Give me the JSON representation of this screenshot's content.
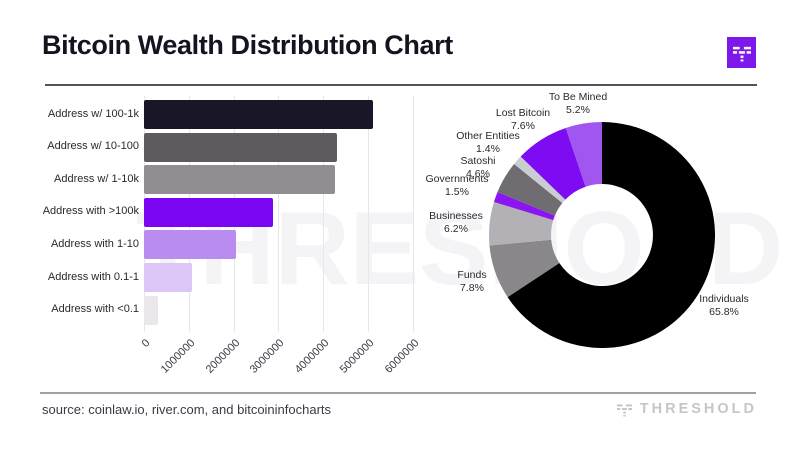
{
  "header": {
    "title": "Bitcoin Wealth Distribution Chart",
    "logo_icon": "threshold-mark",
    "logo_color": "#7d17ea"
  },
  "watermark": "THRESHOLD",
  "chart_data": [
    {
      "type": "bar",
      "orientation": "horizontal",
      "title": "",
      "xlabel": "",
      "ylabel": "",
      "grid": true,
      "xlim": [
        0,
        6200000
      ],
      "xticks": [
        "0",
        "1000000",
        "2000000",
        "3000000",
        "4000000",
        "5000000",
        "6000000"
      ],
      "categories": [
        "Address w/ 100-1k",
        "Address w/ 10-100",
        "Address w/ 1-10k",
        "Address with >100k",
        "Address with 1-10",
        "Address with 0.1-1",
        "Address with <0.1"
      ],
      "values": [
        5100000,
        4300000,
        4250000,
        2870000,
        2050000,
        1070000,
        310000
      ],
      "colors": [
        "#191627",
        "#5e5b60",
        "#918e93",
        "#7a05f2",
        "#b98cef",
        "#dcc6f5",
        "#e9e7ea"
      ]
    },
    {
      "type": "pie",
      "donut": true,
      "title": "",
      "segments": [
        {
          "label": "Individuals",
          "pct": 65.8,
          "color": "#000000"
        },
        {
          "label": "Funds",
          "pct": 7.8,
          "color": "#8a878b"
        },
        {
          "label": "Businesses",
          "pct": 6.2,
          "color": "#b4b1b6"
        },
        {
          "label": "Governments",
          "pct": 1.5,
          "color": "#8a15f0"
        },
        {
          "label": "Satoshi",
          "pct": 4.6,
          "color": "#6f6c72"
        },
        {
          "label": "Other Entities",
          "pct": 1.4,
          "color": "#c9cdd1"
        },
        {
          "label": "Lost Bitcoin",
          "pct": 7.6,
          "color": "#7d0cf2"
        },
        {
          "label": "To Be Mined",
          "pct": 5.2,
          "color": "#a156ef"
        }
      ]
    }
  ],
  "footer": {
    "source": "source: coinlaw.io, river.com, and bitcoininfocharts",
    "brand": "THRESHOLD"
  }
}
